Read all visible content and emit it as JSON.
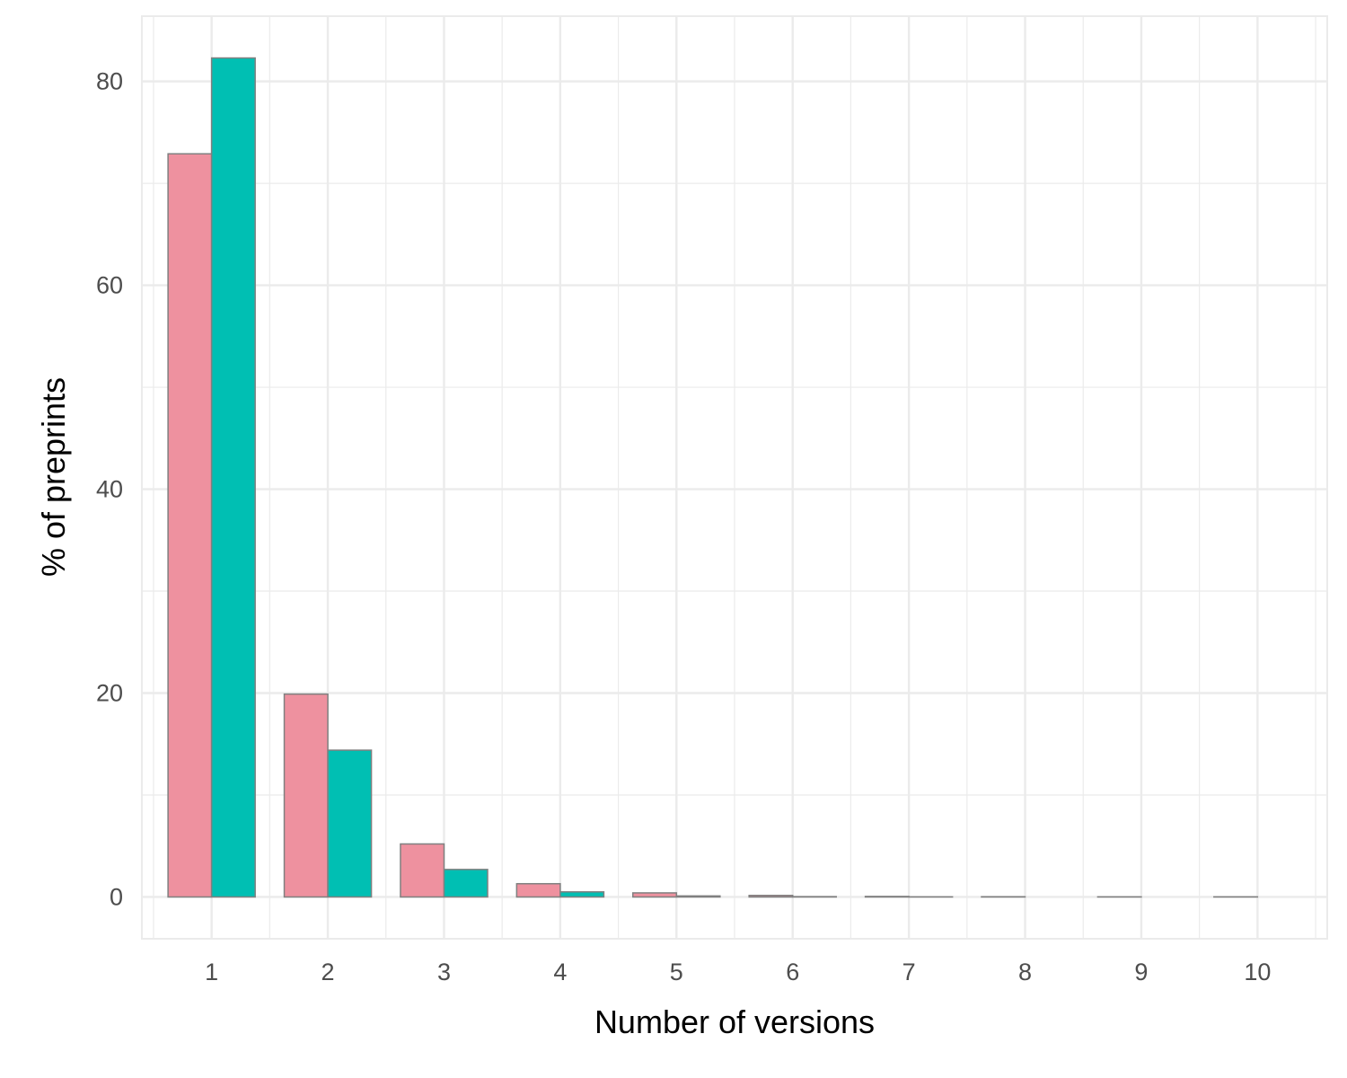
{
  "chart_data": {
    "type": "bar",
    "title": "",
    "xlabel": "Number of versions",
    "ylabel": "% of preprints",
    "categories": [
      "1",
      "2",
      "3",
      "4",
      "5",
      "6",
      "7",
      "8",
      "9",
      "10"
    ],
    "series": [
      {
        "color": "#ee919f",
        "values": [
          72.9,
          19.9,
          5.2,
          1.3,
          0.4,
          0.15,
          0.05,
          0.02,
          0.01,
          0.01
        ]
      },
      {
        "color": "#00bfb3",
        "values": [
          82.3,
          14.4,
          2.7,
          0.5,
          0.1,
          0.03,
          0.01,
          0.0,
          0.0,
          0.0
        ]
      }
    ],
    "y_ticks": [
      0,
      20,
      40,
      60,
      80
    ],
    "ylim": [
      -4.1,
      86.4
    ],
    "grid": true,
    "legend": "none"
  }
}
